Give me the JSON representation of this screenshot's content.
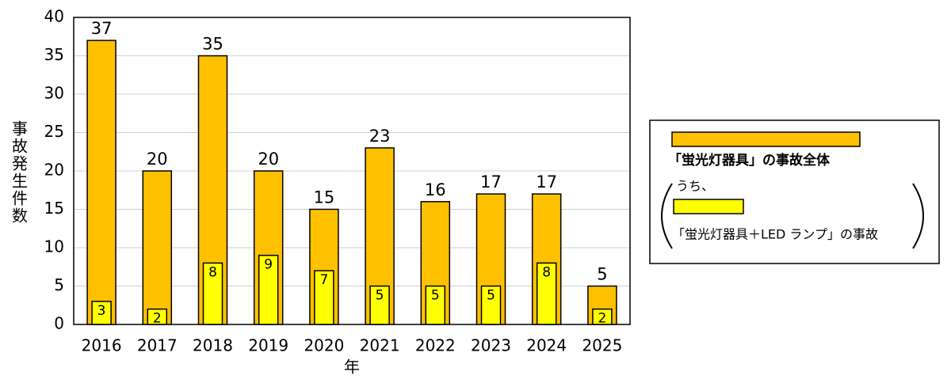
{
  "chart_data": {
    "type": "bar",
    "x_label": "年",
    "y_label": "事故発生件数",
    "categories": [
      "2016",
      "2017",
      "2018",
      "2019",
      "2020",
      "2021",
      "2022",
      "2023",
      "2024",
      "2025"
    ],
    "series": [
      {
        "name": "「蛍光灯器具」の事故全体",
        "color": "#FFC000",
        "values": [
          37,
          20,
          35,
          20,
          15,
          23,
          16,
          17,
          17,
          5
        ]
      },
      {
        "name": "「蛍光灯器具＋LED ランプ」の事故",
        "color": "#FFFF00",
        "values": [
          3,
          2,
          8,
          9,
          7,
          5,
          5,
          5,
          8,
          2
        ]
      }
    ],
    "legend_prefix": "うち、",
    "ylim": [
      0,
      40
    ],
    "yticks": [
      0,
      5,
      10,
      15,
      20,
      25,
      30,
      35,
      40
    ],
    "grid": true,
    "legend": "right"
  }
}
